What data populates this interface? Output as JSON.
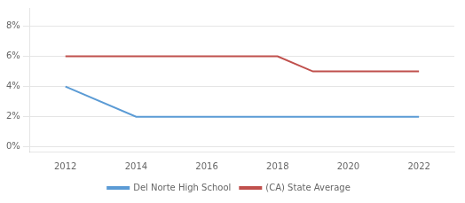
{
  "chart_data": {
    "type": "line",
    "x": [
      2012,
      2014,
      2016,
      2018,
      2019,
      2020,
      2022
    ],
    "series": [
      {
        "name": "Del Norte High School",
        "color": "#5b9bd5",
        "values": [
          0.04,
          0.02,
          0.02,
          0.02,
          0.02,
          0.02,
          0.02
        ]
      },
      {
        "name": "(CA) State Average",
        "color": "#c0504d",
        "values": [
          0.06,
          0.06,
          0.06,
          0.06,
          0.05,
          0.05,
          0.05
        ]
      }
    ],
    "xlim": [
      2011.0,
      2023.0
    ],
    "xticks": [
      2012,
      2014,
      2016,
      2018,
      2020,
      2022
    ],
    "ylim": [
      -0.003,
      0.092
    ],
    "yticks": [
      {
        "value": 0.0,
        "label": "0%"
      },
      {
        "value": 0.02,
        "label": "2%"
      },
      {
        "value": 0.04,
        "label": "4%"
      },
      {
        "value": 0.06,
        "label": "6%"
      },
      {
        "value": 0.08,
        "label": "8%"
      }
    ],
    "grid": "y",
    "legend": "bottom"
  }
}
